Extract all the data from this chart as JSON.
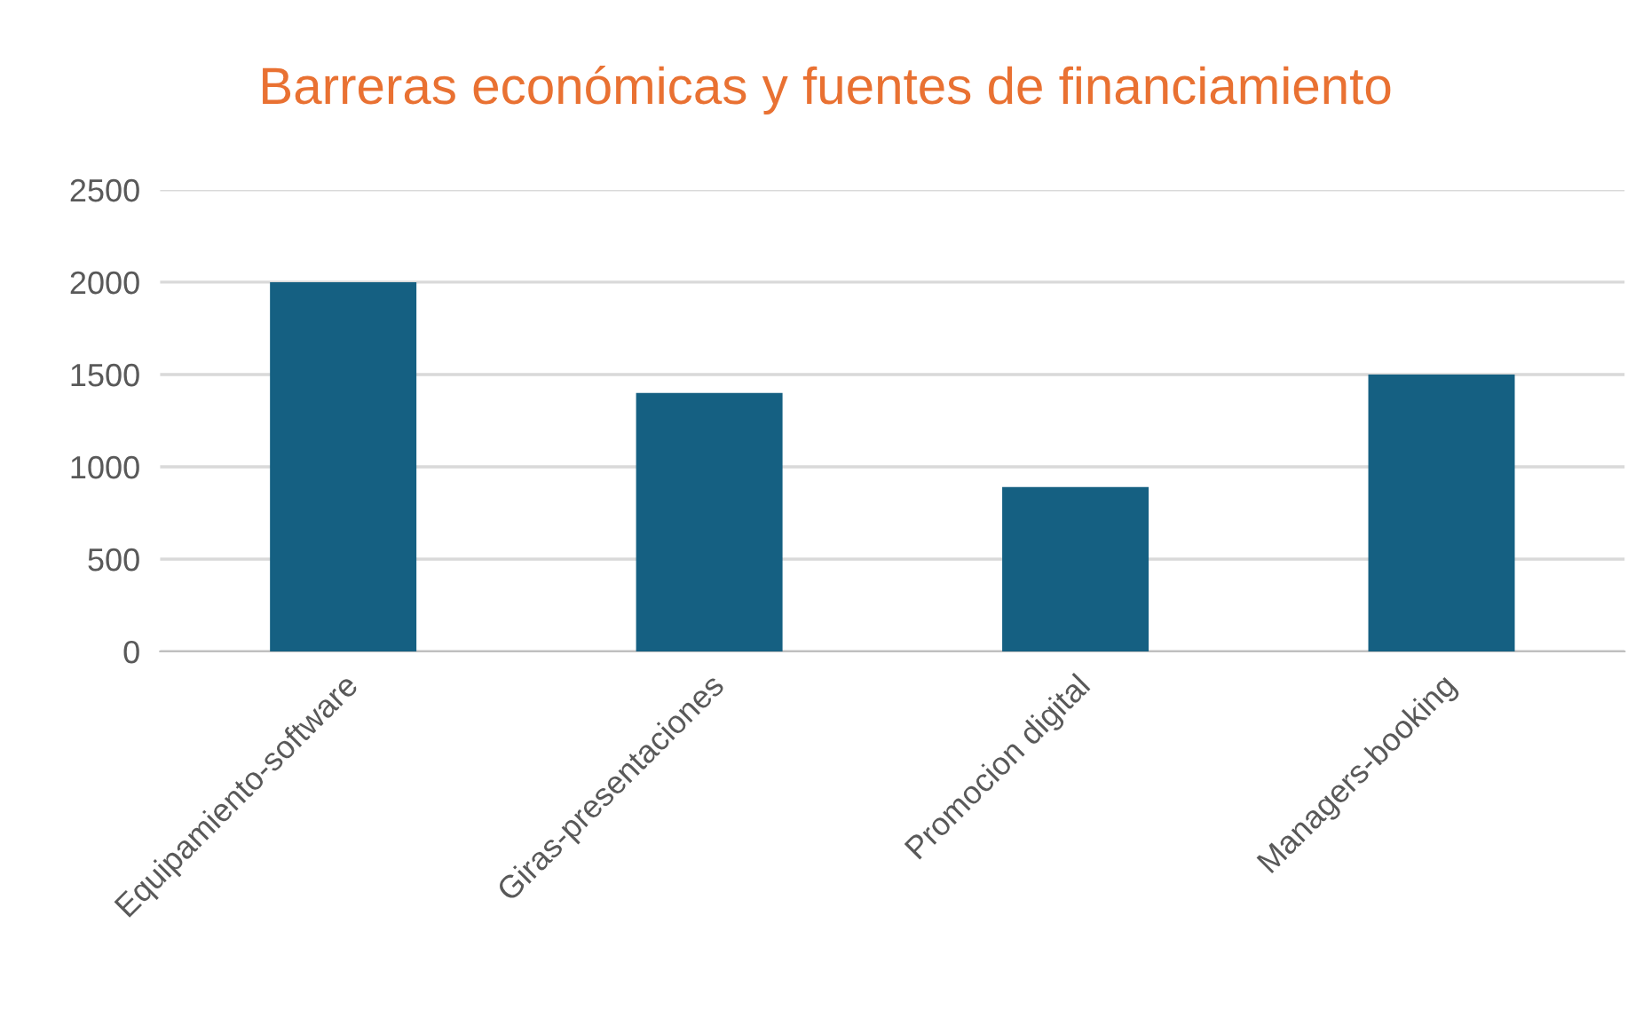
{
  "chart_data": {
    "type": "bar",
    "title": "Barreras económicas y fuentes de financiamiento",
    "categories": [
      "Equipamiento-software",
      "Giras-presentaciones",
      "Promocion digital",
      "Managers-booking"
    ],
    "values": [
      2000,
      1400,
      890,
      1500
    ],
    "color": "#156082",
    "ylim": [
      0,
      2500
    ],
    "yticks": [
      0,
      500,
      1000,
      1500,
      2000,
      2500
    ],
    "grid": "y"
  }
}
